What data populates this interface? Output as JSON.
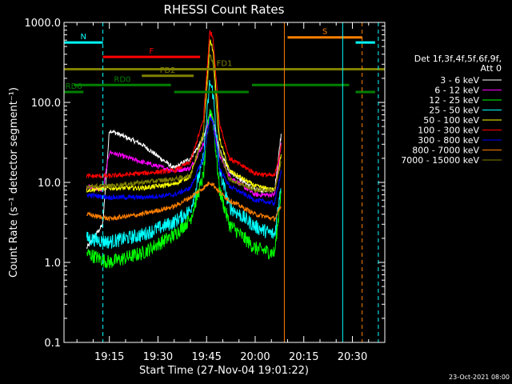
{
  "chart_data": {
    "type": "line",
    "title": "RHESSI Count Rates",
    "xlabel": "Start Time (27-Nov-04 19:01:22)",
    "ylabel": "Count Rate (s⁻¹ detector segment⁻¹)",
    "y_scale": "log",
    "ylim": [
      0.1,
      1000
    ],
    "y_ticks": [
      "1000.0",
      "100.0",
      "10.0",
      "1.0",
      "0.1"
    ],
    "x_range": [
      "19:01",
      "20:40"
    ],
    "x_ticks": [
      "19:15",
      "19:30",
      "19:45",
      "20:00",
      "20:15",
      "20:30"
    ],
    "footer_date": "23-Oct-2021 08:00",
    "legend_title": [
      "Det 1f,3f,4f,5f,6f,9f,",
      "Att 0"
    ],
    "series": [
      {
        "name": "3 - 6 keV",
        "color": "#ffffff",
        "x": [
          "19:08",
          "19:13",
          "19:15",
          "19:25",
          "19:35",
          "19:40",
          "19:44",
          "19:46",
          "19:47",
          "19:49",
          "19:52",
          "20:00",
          "20:06",
          "20:08"
        ],
        "values": [
          1.5,
          3,
          45,
          30,
          15,
          20,
          35,
          70,
          60,
          25,
          14,
          8,
          8,
          40
        ]
      },
      {
        "name": "6 - 12 keV",
        "color": "#ff00ff",
        "x": [
          "19:08",
          "19:13",
          "19:15",
          "19:25",
          "19:35",
          "19:40",
          "19:44",
          "19:46",
          "19:47",
          "19:49",
          "19:52",
          "20:00",
          "20:06",
          "20:08"
        ],
        "values": [
          9,
          8,
          24,
          18,
          14,
          15,
          30,
          70,
          55,
          22,
          12,
          7,
          7,
          30
        ]
      },
      {
        "name": "12 - 25 keV",
        "color": "#00ff00",
        "x": [
          "19:08",
          "19:15",
          "19:25",
          "19:35",
          "19:40",
          "19:44",
          "19:46",
          "19:47",
          "19:49",
          "19:52",
          "20:00",
          "20:06",
          "20:08"
        ],
        "values": [
          1.3,
          1.0,
          1.3,
          2.2,
          3.5,
          12,
          85,
          60,
          8,
          3,
          1.5,
          1.3,
          8
        ]
      },
      {
        "name": "25 - 50 keV",
        "color": "#00ffff",
        "x": [
          "19:08",
          "19:15",
          "19:25",
          "19:35",
          "19:40",
          "19:44",
          "19:46",
          "19:47",
          "19:49",
          "19:52",
          "20:00",
          "20:06",
          "20:08"
        ],
        "values": [
          2,
          1.8,
          2.2,
          3.2,
          4.5,
          20,
          180,
          130,
          14,
          5,
          2.8,
          2.2,
          10
        ]
      },
      {
        "name": "50 - 100 keV",
        "color": "#ffff00",
        "x": [
          "19:08",
          "19:15",
          "19:25",
          "19:35",
          "19:40",
          "19:44",
          "19:46",
          "19:47",
          "19:49",
          "19:52",
          "20:00",
          "20:06",
          "20:08"
        ],
        "values": [
          8,
          8.5,
          8.5,
          9.5,
          12,
          40,
          600,
          450,
          35,
          14,
          9,
          8,
          22
        ]
      },
      {
        "name": "100 - 300 keV",
        "color": "#ff0000",
        "x": [
          "19:08",
          "19:15",
          "19:25",
          "19:35",
          "19:40",
          "19:44",
          "19:46",
          "19:47",
          "19:49",
          "19:52",
          "20:00",
          "20:06",
          "20:08"
        ],
        "values": [
          12,
          12,
          13,
          14,
          18,
          60,
          780,
          650,
          55,
          20,
          13,
          12,
          28
        ]
      },
      {
        "name": "300 - 800 keV",
        "color": "#0000ff",
        "x": [
          "19:08",
          "19:15",
          "19:25",
          "19:35",
          "19:40",
          "19:44",
          "19:46",
          "19:47",
          "19:49",
          "19:52",
          "20:00",
          "20:06",
          "20:08"
        ],
        "values": [
          7,
          6.5,
          6.5,
          7,
          8.5,
          20,
          65,
          55,
          15,
          9,
          6,
          5.5,
          14
        ]
      },
      {
        "name": "800 - 7000 keV",
        "color": "#ff8000",
        "x": [
          "19:08",
          "19:15",
          "19:25",
          "19:35",
          "19:40",
          "19:44",
          "19:46",
          "19:47",
          "19:49",
          "19:52",
          "20:00",
          "20:06",
          "20:08"
        ],
        "values": [
          4,
          3.5,
          4,
          5,
          6.5,
          8.5,
          10,
          9.5,
          7.5,
          6,
          4,
          3.5,
          5
        ]
      },
      {
        "name": "7000 - 15000 keV",
        "color": "#808000",
        "x": [
          "19:08",
          "19:15",
          "19:25",
          "19:35",
          "19:40",
          "19:44",
          "19:46",
          "19:47",
          "19:49",
          "19:52",
          "20:00",
          "20:06",
          "20:08"
        ],
        "values": [
          9,
          9,
          10,
          11,
          12,
          40,
          400,
          300,
          25,
          11,
          8,
          8,
          18
        ]
      }
    ],
    "annotations": [
      {
        "label": "N",
        "color": "#00ffff",
        "y": 560,
        "segments": [
          [
            "19:01",
            "19:13"
          ],
          [
            "20:31",
            "20:37"
          ]
        ]
      },
      {
        "label": "F",
        "color": "#ff0000",
        "y": 370,
        "segments": [
          [
            "19:13",
            "19:43"
          ]
        ]
      },
      {
        "label": "FD1",
        "color": "#808000",
        "y": 260,
        "segments": [
          [
            "19:01",
            "20:40"
          ]
        ]
      },
      {
        "label": "FD2",
        "color": "#808000",
        "y": 215,
        "segments": [
          [
            "19:25",
            "19:41"
          ]
        ]
      },
      {
        "label": "RD0",
        "color": "#008000",
        "y": 165,
        "segments": [
          [
            "19:04",
            "19:34"
          ],
          [
            "19:59",
            "20:29"
          ]
        ]
      },
      {
        "label": "RD6",
        "color": "#008000",
        "y": 135,
        "segments": [
          [
            "19:01",
            "19:07"
          ],
          [
            "19:35",
            "19:58"
          ],
          [
            "20:31",
            "20:37"
          ]
        ]
      },
      {
        "label": "S",
        "color": "#ff8000",
        "y": 650,
        "segments": [
          [
            "20:10",
            "20:33"
          ]
        ]
      }
    ],
    "vertical_lines": [
      {
        "x": "19:01",
        "color": "#00ffff",
        "style": "solid"
      },
      {
        "x": "19:13",
        "color": "#00ffff",
        "style": "dashed"
      },
      {
        "x": "20:09",
        "color": "#ff8000",
        "style": "solid"
      },
      {
        "x": "20:27",
        "color": "#00ffff",
        "style": "solid"
      },
      {
        "x": "20:33",
        "color": "#ff8000",
        "style": "dashed"
      },
      {
        "x": "20:38",
        "color": "#00ffff",
        "style": "dashed"
      }
    ]
  }
}
